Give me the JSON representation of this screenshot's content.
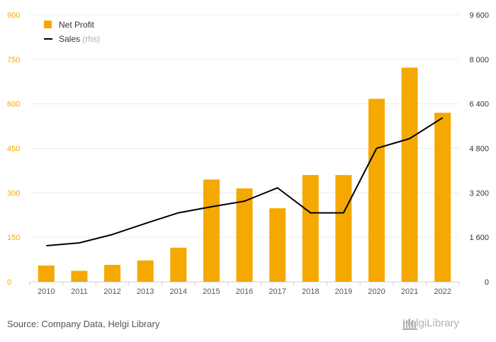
{
  "chart_data": {
    "type": "bar",
    "categories": [
      "2010",
      "2011",
      "2012",
      "2013",
      "2014",
      "2015",
      "2016",
      "2017",
      "2018",
      "2019",
      "2020",
      "2021",
      "2022"
    ],
    "series": [
      {
        "name": "Net Profit",
        "kind": "bar",
        "axis": "left",
        "color": "#f5a800",
        "values": [
          55,
          37,
          57,
          72,
          115,
          345,
          315,
          248,
          360,
          360,
          617,
          722,
          570
        ]
      },
      {
        "name": "Sales",
        "name_suffix": "(rhs)",
        "kind": "line",
        "axis": "right",
        "color": "#000000",
        "values": [
          1300,
          1400,
          1700,
          2100,
          2480,
          2700,
          2900,
          3380,
          2480,
          2480,
          4800,
          5150,
          5900
        ]
      }
    ],
    "y_left": {
      "ticks": [
        "0",
        "150",
        "300",
        "450",
        "600",
        "750",
        "900"
      ],
      "ylim": [
        0,
        900
      ],
      "color": "#f5a800"
    },
    "y_right": {
      "ticks": [
        "0",
        "1 600",
        "3 200",
        "4 800",
        "6 400",
        "8 000",
        "9 600"
      ],
      "ylim": [
        0,
        9600
      ]
    },
    "legend_position": "top-left",
    "grid": true
  },
  "footer": {
    "source": "Source: Company Data, Helgi Library",
    "logo_text": "HelgiLibrary"
  }
}
